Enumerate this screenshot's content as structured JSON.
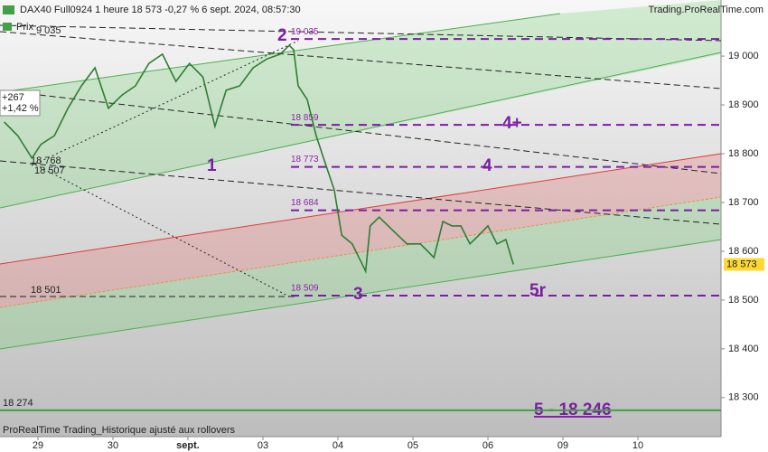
{
  "chart_data": {
    "type": "line",
    "title": "DAX40 Full0924 1 heure 18 573 -0,27 % 6 sept. 2024, 08:57:30",
    "source": "Trading.ProRealTime.com",
    "footer": "ProRealTime Trading_Historique ajusté aux rollovers",
    "series": [
      {
        "name": "Prix",
        "color": "#2e7d32",
        "x": [
          -0.45,
          -0.27,
          -0.08,
          0.04,
          0.22,
          0.4,
          0.58,
          0.76,
          0.94,
          1.12,
          1.3,
          1.48,
          1.66,
          1.84,
          2.02,
          2.2,
          2.36,
          2.51,
          2.69,
          2.87,
          3.05,
          3.23,
          3.35,
          3.41,
          3.47,
          3.59,
          3.71,
          3.83,
          3.95,
          4.05,
          4.19,
          4.31,
          4.37,
          4.43,
          4.55,
          4.73,
          4.92,
          5.1,
          5.28,
          5.4,
          5.52,
          5.64,
          5.76,
          5.88,
          6.0,
          6.12,
          6.24,
          6.34
        ],
        "values": [
          18865,
          18837,
          18791,
          18819,
          18837,
          18893,
          18939,
          18976,
          18893,
          18920,
          18939,
          18985,
          19004,
          18948,
          18985,
          18957,
          18856,
          18930,
          18939,
          18976,
          18994,
          19004,
          19022,
          19013,
          18939,
          18911,
          18837,
          18781,
          18726,
          18633,
          18615,
          18578,
          18559,
          18652,
          18670,
          18643,
          18615,
          18615,
          18587,
          18661,
          18652,
          18652,
          18615,
          18633,
          18652,
          18615,
          18624,
          18573
        ]
      }
    ],
    "last_price": {
      "value": 18573,
      "label": "18 573"
    },
    "change_points": "+267",
    "change_percent": "+1,42 %",
    "levels": [
      {
        "value": 19035,
        "label": "19 035"
      },
      {
        "value": 18859,
        "label": "18 859"
      },
      {
        "value": 18773,
        "label": "18 773"
      },
      {
        "value": 18684,
        "label": "18 684"
      },
      {
        "value": 18509,
        "label": "18 509"
      }
    ],
    "support": {
      "value": 18274,
      "label": "18 274"
    },
    "annotations": [
      "9 035",
      "18 768",
      "18 507",
      "18 501"
    ],
    "waves": [
      "1",
      "2",
      "3",
      "4",
      "4+",
      "5r",
      "5 - 18 246"
    ],
    "xlim": [
      -0.506,
      9.108
    ],
    "xticks": [
      {
        "value": 0,
        "label": "29"
      },
      {
        "value": 1,
        "label": "30"
      },
      {
        "value": 2,
        "label": "sept."
      },
      {
        "value": 3,
        "label": "03"
      },
      {
        "value": 4,
        "label": "04"
      },
      {
        "value": 5,
        "label": "05"
      },
      {
        "value": 6,
        "label": "06"
      },
      {
        "value": 7,
        "label": "09"
      },
      {
        "value": 8,
        "label": "10"
      }
    ],
    "ylim": [
      18220,
      19115
    ],
    "yticks": [
      {
        "value": 18300,
        "label": "18 300"
      },
      {
        "value": 18400,
        "label": "18 400"
      },
      {
        "value": 18500,
        "label": "18 500"
      },
      {
        "value": 18600,
        "label": "18 600"
      },
      {
        "value": 18700,
        "label": "18 700"
      },
      {
        "value": 18800,
        "label": "18 800"
      },
      {
        "value": 18900,
        "label": "18 900"
      },
      {
        "value": 19000,
        "label": "19 000"
      }
    ]
  }
}
